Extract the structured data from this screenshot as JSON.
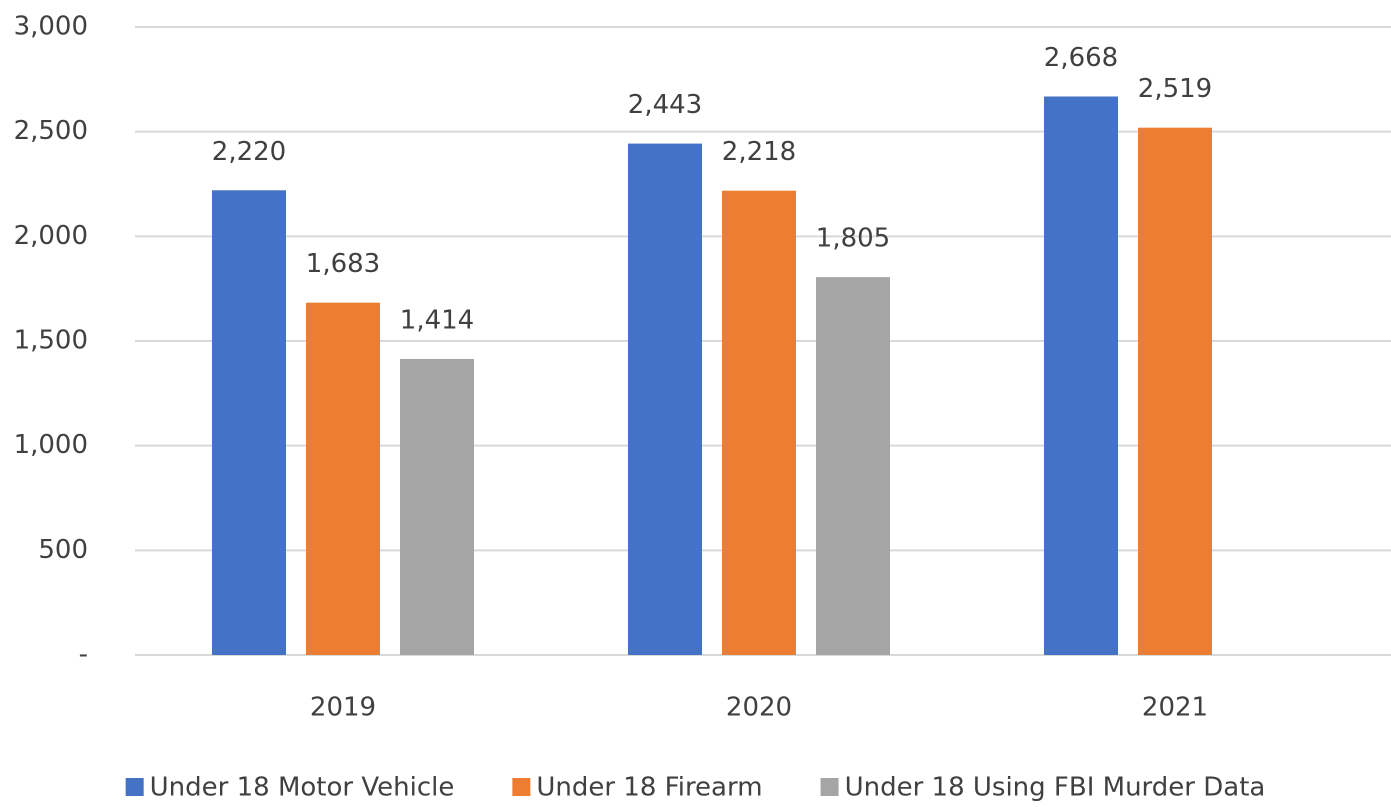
{
  "chart_data": {
    "type": "bar",
    "categories": [
      "2019",
      "2020",
      "2021"
    ],
    "series": [
      {
        "name": "Under 18 Motor Vehicle",
        "color": "#4472c4",
        "values": [
          2220,
          2443,
          2668
        ],
        "value_labels": [
          "2,220",
          "2,443",
          "2,668"
        ]
      },
      {
        "name": "Under 18 Firearm",
        "color": "#ed7d31",
        "values": [
          1683,
          2218,
          2519
        ],
        "value_labels": [
          "1,683",
          "2,218",
          "2,519"
        ]
      },
      {
        "name": "Under 18 Using FBI Murder Data",
        "color": "#a5a5a5",
        "values": [
          1414,
          1805,
          null
        ],
        "value_labels": [
          "1,414",
          "1,805",
          null
        ]
      }
    ],
    "ylim": [
      0,
      3000
    ],
    "yticks": [
      {
        "value": 0,
        "label": "-"
      },
      500,
      {
        "value": 1000,
        "label": "1,000"
      },
      {
        "value": 1500,
        "label": "1,500"
      },
      {
        "value": 2000,
        "label": "2,000"
      },
      {
        "value": 2500,
        "label": "2,500"
      },
      {
        "value": 3000,
        "label": "3,000"
      }
    ],
    "grid": true,
    "legend": "bottom"
  }
}
